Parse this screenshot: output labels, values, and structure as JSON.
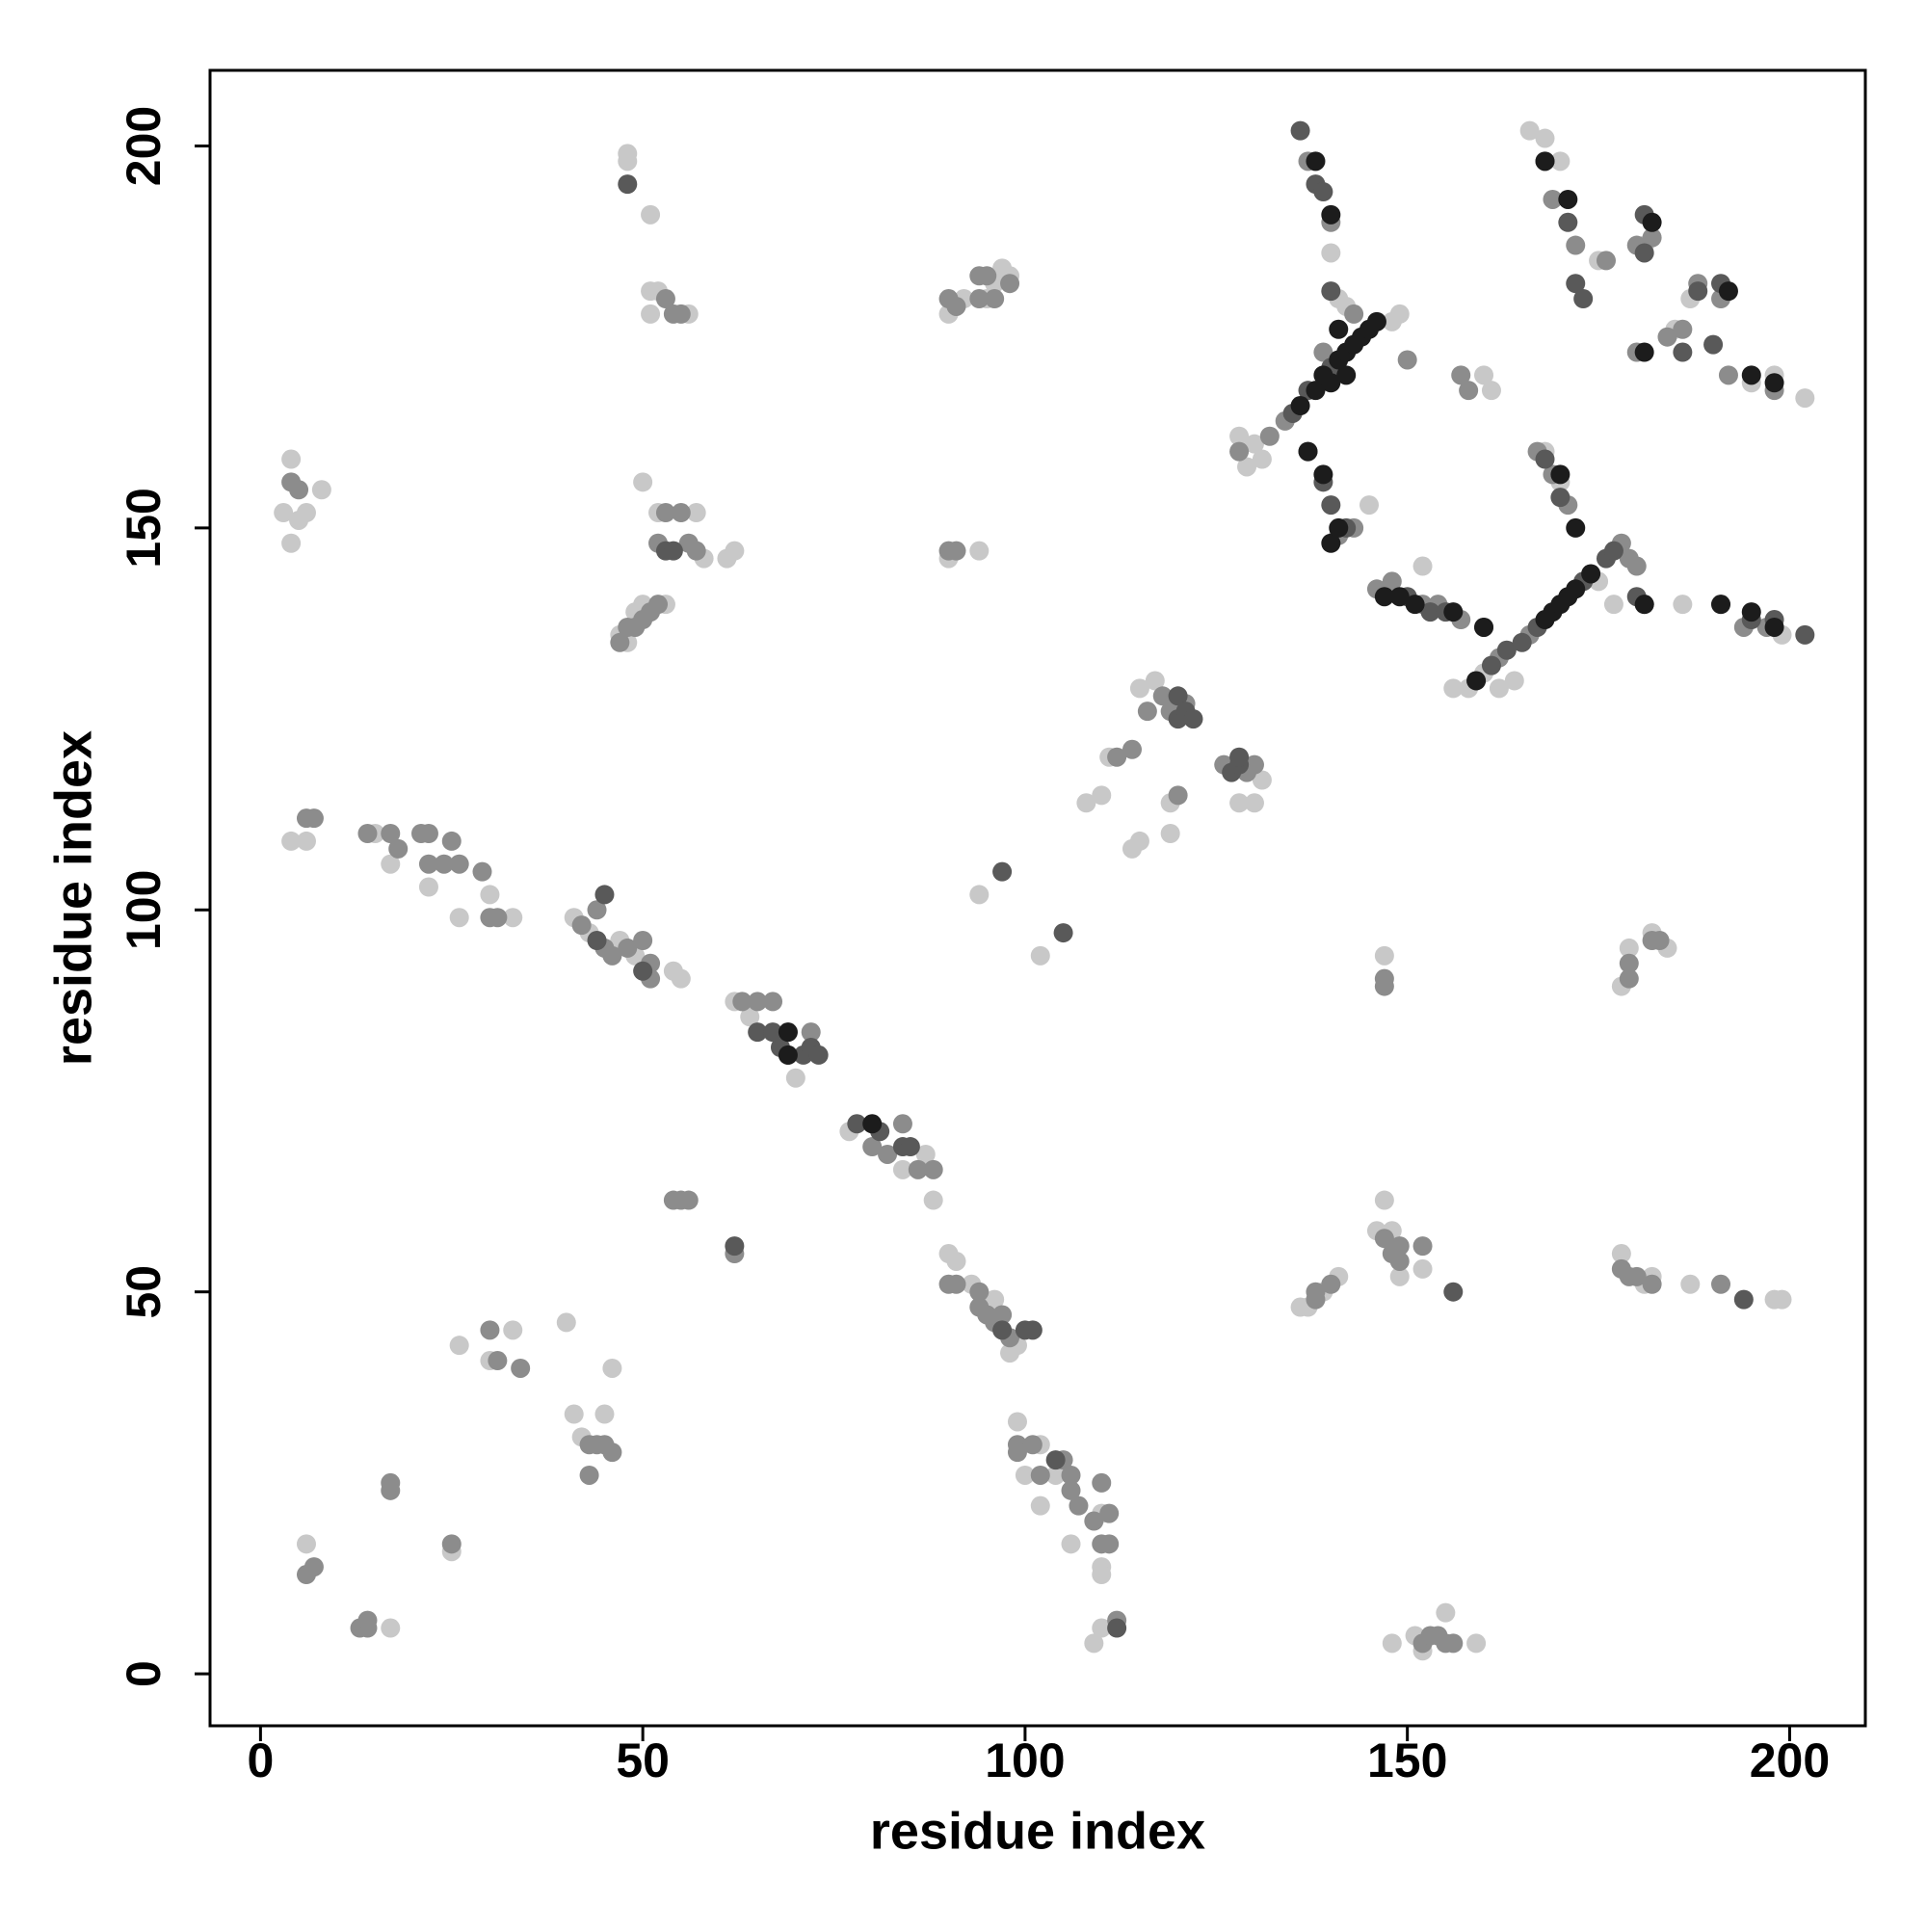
{
  "chart_data": {
    "type": "scatter",
    "x_label": "residue index",
    "y_label": "residue index",
    "xlim": [
      -6.6,
      209.9
    ],
    "ylim": [
      -6.8,
      209.9
    ],
    "xticks": [
      0,
      50,
      100,
      150,
      200
    ],
    "yticks": [
      0,
      50,
      100,
      150,
      200
    ],
    "series": [
      {
        "color": "#c8c8c8",
        "x": [
          4,
          3,
          5,
          6,
          4,
          8,
          4,
          6,
          15,
          17,
          22,
          26,
          30,
          33,
          26,
          30,
          33,
          40,
          41,
          42,
          45,
          46,
          25,
          6,
          17,
          48,
          48,
          51,
          51,
          52,
          51,
          56,
          50,
          52,
          57,
          58,
          61,
          62,
          47,
          48,
          49,
          50,
          53,
          90,
          92,
          95,
          96,
          97,
          98,
          90,
          94,
          41,
          43,
          47,
          49,
          54,
          55,
          62,
          64,
          70,
          77,
          84,
          87,
          88,
          90,
          91,
          93,
          96,
          99,
          98,
          94,
          102,
          99,
          102,
          102,
          106,
          110,
          110,
          110,
          109,
          110,
          108,
          110,
          111,
          114,
          115,
          119,
          119,
          115,
          117,
          128,
          130,
          131,
          136,
          137,
          139,
          141,
          146,
          147,
          148,
          149,
          152,
          147,
          148,
          151,
          152,
          155,
          159,
          178,
          179,
          182,
          184,
          178,
          181,
          182,
          187,
          198,
          199,
          128,
          129,
          131,
          141,
          142,
          148,
          149,
          140,
          138,
          145,
          161,
          160,
          152,
          156,
          158,
          160,
          162,
          164,
          177,
          175,
          186,
          199,
          166,
          168,
          170,
          175,
          181,
          185,
          187,
          195,
          198,
          202,
          168,
          170,
          130,
          100,
          104
        ],
        "y": [
          159,
          152,
          151,
          152,
          148,
          155,
          109,
          109,
          110,
          106,
          103,
          99,
          102,
          99,
          43,
          41,
          45,
          46,
          34,
          31,
          34,
          40,
          16,
          17,
          6,
          199,
          198,
          191,
          181,
          181,
          178,
          178,
          156,
          152,
          152,
          146,
          146,
          147,
          136,
          135,
          139,
          140,
          140,
          178,
          180,
          180,
          182,
          184,
          183,
          146,
          147,
          99,
          97,
          96,
          94,
          92,
          91,
          88,
          86,
          78,
          71,
          66,
          68,
          62,
          55,
          54,
          51,
          49,
          43,
          42,
          102,
          94,
          33,
          30,
          22,
          17,
          21,
          14,
          13,
          4,
          6,
          114,
          115,
          120,
          108,
          109,
          110,
          114,
          129,
          130,
          114,
          114,
          117,
          48,
          48,
          50,
          52,
          58,
          62,
          58,
          52,
          53,
          94,
          4,
          5,
          3,
          8,
          4,
          90,
          95,
          97,
          95,
          55,
          51,
          52,
          51,
          49,
          49,
          162,
          158,
          159,
          180,
          179,
          177,
          178,
          186,
          198,
          153,
          168,
          170,
          145,
          129,
          129,
          131,
          129,
          130,
          140,
          143,
          140,
          136,
          202,
          201,
          198,
          185,
          187,
          176,
          180,
          169,
          170,
          167,
          160,
          156,
          161,
          26,
          26
        ]
      },
      {
        "color": "#8c8c8c",
        "x": [
          5,
          4,
          6,
          7,
          14,
          17,
          18,
          21,
          22,
          22,
          25,
          26,
          29,
          30,
          31,
          30,
          31,
          34,
          43,
          44,
          45,
          46,
          43,
          17,
          17,
          25,
          14,
          13,
          14,
          6,
          7,
          53,
          54,
          55,
          53,
          55,
          52,
          56,
          57,
          47,
          48,
          49,
          50,
          51,
          52,
          90,
          91,
          94,
          96,
          94,
          95,
          98,
          90,
          91,
          42,
          44,
          45,
          46,
          48,
          50,
          51,
          51,
          63,
          65,
          67,
          69,
          72,
          80,
          82,
          84,
          86,
          88,
          90,
          91,
          94,
          94,
          95,
          96,
          97,
          98,
          99,
          99,
          101,
          102,
          105,
          106,
          107,
          110,
          111,
          111,
          109,
          112,
          54,
          55,
          56,
          62,
          116,
          118,
          119,
          121,
          112,
          114,
          120,
          126,
          129,
          130,
          138,
          138,
          140,
          147,
          148,
          149,
          149,
          152,
          147,
          147,
          152,
          153,
          154,
          155,
          156,
          179,
          179,
          182,
          183,
          178,
          179,
          180,
          182,
          191,
          128,
          132,
          134,
          139,
          143,
          137,
          140,
          141,
          143,
          150,
          157,
          158,
          146,
          148,
          152,
          154,
          157,
          159,
          162,
          166,
          178,
          179,
          180,
          194,
          197,
          191,
          168,
          169,
          172,
          176,
          180,
          182,
          180,
          184,
          186,
          188,
          191,
          192,
          198,
          169,
          167,
          171,
          110,
          106,
          24
        ],
        "y": [
          155,
          156,
          112,
          112,
          110,
          110,
          108,
          110,
          110,
          106,
          109,
          106,
          105,
          99,
          99,
          45,
          41,
          40,
          30,
          30,
          30,
          29,
          26,
          24,
          25,
          17,
          6,
          6,
          7,
          13,
          14,
          180,
          178,
          178,
          152,
          152,
          148,
          148,
          147,
          135,
          137,
          137,
          138,
          139,
          140,
          180,
          179,
          180,
          180,
          183,
          183,
          182,
          147,
          147,
          98,
          100,
          95,
          94,
          95,
          96,
          93,
          91,
          88,
          88,
          88,
          84,
          84,
          69,
          68,
          72,
          66,
          66,
          51,
          51,
          50,
          48,
          47,
          46,
          47,
          44,
          30,
          29,
          30,
          26,
          28,
          24,
          22,
          25,
          17,
          21,
          20,
          7,
          62,
          62,
          62,
          55,
          126,
          128,
          126,
          127,
          120,
          121,
          115,
          119,
          118,
          119,
          49,
          50,
          51,
          57,
          55,
          54,
          56,
          56,
          90,
          91,
          4,
          5,
          5,
          4,
          4,
          91,
          93,
          96,
          96,
          53,
          52,
          52,
          51,
          51,
          160,
          162,
          164,
          173,
          178,
          198,
          190,
          149,
          150,
          172,
          170,
          168,
          142,
          143,
          140,
          140,
          138,
          130,
          133,
          136,
          148,
          146,
          145,
          137,
          137,
          140,
          198,
          193,
          187,
          185,
          187,
          188,
          173,
          175,
          176,
          182,
          180,
          170,
          168,
          157,
          160,
          153,
          17,
          26,
          106
        ]
      },
      {
        "color": "#595959",
        "x": [
          45,
          44,
          50,
          68,
          69,
          71,
          72,
          73,
          65,
          67,
          78,
          81,
          84,
          85,
          97,
          100,
          101,
          104,
          62,
          97,
          105,
          112,
          48,
          53,
          54,
          120,
          120,
          121,
          122,
          127,
          128,
          128,
          156,
          194,
          135,
          137,
          140,
          136,
          138,
          139,
          140,
          137,
          139,
          140,
          142,
          150,
          153,
          155,
          160,
          161,
          163,
          165,
          167,
          173,
          176,
          177,
          180,
          181,
          195,
          198,
          202,
          171,
          172,
          173,
          181,
          181,
          186,
          188,
          190,
          191,
          168,
          170
        ],
        "y": [
          102,
          96,
          92,
          82,
          81,
          81,
          82,
          81,
          84,
          84,
          72,
          71,
          69,
          69,
          45,
          45,
          45,
          28,
          56,
          105,
          97,
          6,
          195,
          147,
          147,
          125,
          128,
          126,
          125,
          118,
          119,
          120,
          50,
          49,
          165,
          168,
          171,
          202,
          195,
          194,
          181,
          160,
          156,
          153,
          150,
          141,
          139,
          139,
          137,
          132,
          134,
          135,
          137,
          143,
          146,
          147,
          141,
          140,
          138,
          138,
          136,
          190,
          182,
          180,
          186,
          191,
          173,
          181,
          174,
          182,
          159,
          154
        ]
      },
      {
        "color": "#1c1c1c",
        "x": [
          80,
          69,
          69,
          136,
          138,
          139,
          140,
          141,
          142,
          142,
          143,
          144,
          145,
          146,
          141,
          138,
          140,
          137,
          139,
          140,
          141,
          147,
          149,
          151,
          156,
          160,
          159,
          168,
          169,
          170,
          171,
          172,
          174,
          181,
          191,
          195,
          198,
          168,
          171,
          182,
          192,
          195,
          198,
          170,
          172,
          181
        ],
        "y": [
          72,
          84,
          81,
          166,
          168,
          170,
          169,
          172,
          170,
          173,
          174,
          175,
          176,
          177,
          176,
          198,
          191,
          160,
          157,
          148,
          150,
          141,
          141,
          140,
          139,
          137,
          130,
          138,
          139,
          140,
          141,
          142,
          144,
          140,
          140,
          139,
          137,
          198,
          193,
          190,
          181,
          170,
          169,
          157,
          150,
          173
        ]
      }
    ]
  }
}
